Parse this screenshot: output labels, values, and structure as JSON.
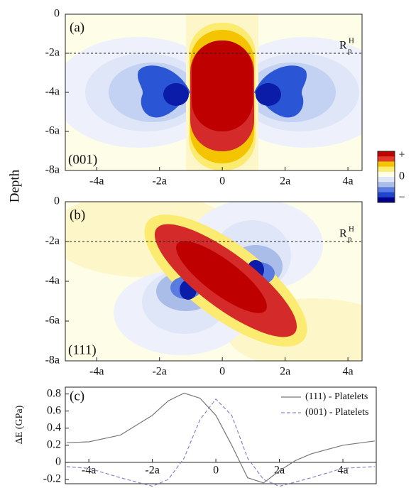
{
  "chart_data": [
    {
      "type": "contour",
      "panel_label": "(a)",
      "orientation": "(001)",
      "ylabel": "Depth",
      "xlim": [
        -5,
        4.45
      ],
      "ylim": [
        -8,
        0
      ],
      "xticks": [
        {
          "value": -4,
          "label": "-4a"
        },
        {
          "value": -2,
          "label": "-2a"
        },
        0,
        {
          "value": 2,
          "label": "2a"
        },
        {
          "value": 4,
          "label": "4a"
        }
      ],
      "yticks": [
        0,
        {
          "value": -2,
          "label": "-2a"
        },
        {
          "value": -4,
          "label": "-4a"
        },
        {
          "value": -6,
          "label": "-6a"
        },
        {
          "value": -8,
          "label": "-8a"
        }
      ],
      "dashed_line": -2,
      "annotation": {
        "text": "R",
        "sub": "p",
        "sup": "H"
      },
      "colorbar": {
        "colors": [
          "#c00000",
          "#e03a2a",
          "#f5c400",
          "#fbeb70",
          "#fdfde8",
          "#dfe6f8",
          "#a9bde8",
          "#5a7be0",
          "#1f45cf",
          "#00008b"
        ],
        "labels": [
          "+",
          "0",
          "−"
        ]
      }
    },
    {
      "type": "contour",
      "panel_label": "(b)",
      "orientation": "(111)",
      "xlim": [
        -5,
        4.45
      ],
      "ylim": [
        -8,
        0
      ],
      "xticks": [
        {
          "value": -4,
          "label": "-4a"
        },
        {
          "value": -2,
          "label": "-2a"
        },
        0,
        {
          "value": 2,
          "label": "2a"
        },
        {
          "value": 4,
          "label": "4a"
        }
      ],
      "yticks": [
        0,
        {
          "value": -2,
          "label": "-2a"
        },
        {
          "value": -4,
          "label": "-4a"
        },
        {
          "value": -6,
          "label": "-6a"
        },
        {
          "value": -8,
          "label": "-8a"
        }
      ],
      "dashed_line": -2,
      "annotation": {
        "text": "R",
        "sub": "p",
        "sup": "H"
      }
    },
    {
      "type": "line",
      "panel_label": "(c)",
      "ylabel": "ΔE  (GPa)",
      "xlim": [
        -4.74,
        5.05
      ],
      "ylim": [
        -0.25,
        0.88
      ],
      "xticks": [
        {
          "value": -4,
          "label": "-4a"
        },
        {
          "value": -2,
          "label": "-2a"
        },
        0,
        {
          "value": 2,
          "label": "2a"
        },
        {
          "value": 4,
          "label": "4a"
        }
      ],
      "yticks": [
        0.8,
        0.6,
        0.4,
        0.2,
        0,
        -0.2
      ],
      "x": [
        -4.7,
        -4,
        -3,
        -2,
        -1.5,
        -1,
        -0.5,
        0,
        0.5,
        1,
        1.5,
        2,
        2.5,
        3,
        4,
        5
      ],
      "series": [
        {
          "name": "(111) - Platelets",
          "color": "#777777",
          "dash": false,
          "values": [
            0.23,
            0.24,
            0.32,
            0.55,
            0.72,
            0.81,
            0.75,
            0.55,
            0.2,
            -0.18,
            -0.24,
            -0.1,
            0.02,
            0.1,
            0.2,
            0.25
          ]
        },
        {
          "name": "(001) - Platelets",
          "color": "#8a84c8",
          "dash": true,
          "values": [
            -0.05,
            -0.07,
            -0.18,
            -0.28,
            -0.2,
            0.05,
            0.5,
            0.74,
            0.55,
            0.05,
            -0.2,
            -0.28,
            -0.23,
            -0.18,
            -0.07,
            -0.05
          ]
        }
      ]
    }
  ]
}
